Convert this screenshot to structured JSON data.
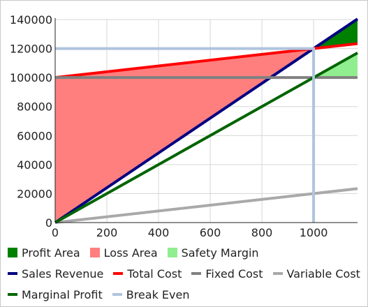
{
  "chart_data": {
    "type": "line",
    "title": "",
    "xlabel": "",
    "ylabel": "",
    "xlim": [
      0,
      1170
    ],
    "ylim": [
      0,
      140000
    ],
    "xticks": [
      0,
      200,
      400,
      600,
      800,
      1000
    ],
    "xtick_labels": [
      "0",
      "200",
      "400",
      "600",
      "800",
      "1000"
    ],
    "yticks": [
      0,
      20000,
      40000,
      60000,
      80000,
      100000,
      120000,
      140000
    ],
    "ytick_labels": [
      "0",
      "20000",
      "40000",
      "60000",
      "80000",
      "100000",
      "120000",
      "140000"
    ],
    "grid": true,
    "legend_position": "bottom",
    "break_even": {
      "x": 1000,
      "y": 120000
    },
    "areas": [
      {
        "name": "Profit Area",
        "color": "#008000",
        "points": [
          [
            1000,
            120000
          ],
          [
            1170,
            140400
          ],
          [
            1170,
            123400
          ]
        ]
      },
      {
        "name": "Loss Area",
        "color": "#ff7f7f",
        "points": [
          [
            0,
            0
          ],
          [
            0,
            100000
          ],
          [
            1000,
            120000
          ]
        ]
      },
      {
        "name": "Safety Margin",
        "color": "#90ee90",
        "points": [
          [
            1000,
            100000
          ],
          [
            1170,
            117000
          ],
          [
            1170,
            100000
          ]
        ]
      }
    ],
    "series": [
      {
        "name": "Sales Revenue",
        "color": "#000080",
        "width": 4,
        "points": [
          [
            0,
            0
          ],
          [
            1170,
            140400
          ]
        ]
      },
      {
        "name": "Total Cost",
        "color": "#ff0000",
        "width": 4,
        "points": [
          [
            0,
            100000
          ],
          [
            1170,
            123400
          ]
        ]
      },
      {
        "name": "Fixed Cost",
        "color": "#808080",
        "width": 4,
        "points": [
          [
            0,
            100000
          ],
          [
            1170,
            100000
          ]
        ]
      },
      {
        "name": "Variable Cost",
        "color": "#a9a9a9",
        "width": 4,
        "points": [
          [
            0,
            0
          ],
          [
            1170,
            23400
          ]
        ]
      },
      {
        "name": "Marginal Profit",
        "color": "#006400",
        "width": 4,
        "points": [
          [
            0,
            0
          ],
          [
            1170,
            117000
          ]
        ]
      },
      {
        "name": "Break Even",
        "color": "#b0c4de",
        "width": 4,
        "points": [
          [
            0,
            120000
          ],
          [
            1000,
            120000
          ],
          [
            1000,
            0
          ]
        ]
      }
    ],
    "legend": {
      "rows": [
        [
          {
            "label": "Profit Area",
            "kind": "box",
            "color": "#008000"
          },
          {
            "label": "Loss Area",
            "kind": "box",
            "color": "#ff7f7f"
          },
          {
            "label": "Safety Margin",
            "kind": "box",
            "color": "#90ee90"
          }
        ],
        [
          {
            "label": "Sales Revenue",
            "kind": "line",
            "color": "#000080"
          },
          {
            "label": "Total Cost",
            "kind": "line",
            "color": "#ff0000"
          },
          {
            "label": "Fixed Cost",
            "kind": "line",
            "color": "#808080"
          },
          {
            "label": "Variable Cost",
            "kind": "line",
            "color": "#a9a9a9"
          }
        ],
        [
          {
            "label": "Marginal Profit",
            "kind": "line",
            "color": "#006400"
          },
          {
            "label": "Break Even",
            "kind": "line",
            "color": "#b0c4de"
          }
        ]
      ]
    }
  }
}
